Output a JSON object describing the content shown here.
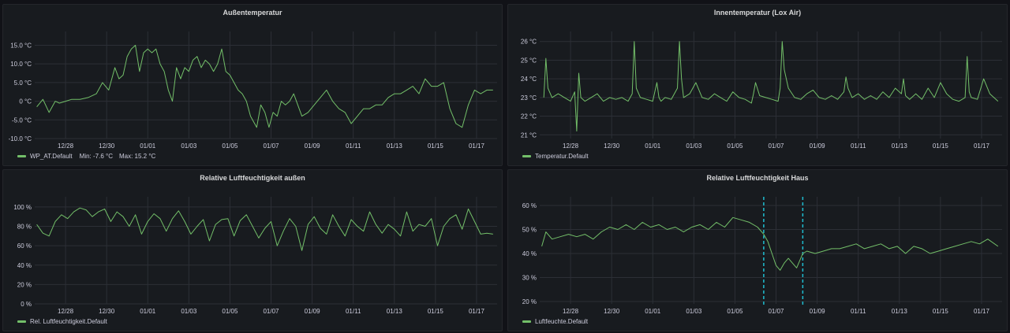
{
  "colors": {
    "line": "#73bf69",
    "grid": "#2c2f36",
    "annotation": "#1fbdd0"
  },
  "chart_data": [
    {
      "type": "line",
      "title": "Außentemperatur",
      "ylim": [
        -10,
        17
      ],
      "yticks": [
        15,
        10,
        5,
        0,
        -5,
        -10
      ],
      "ytick_labels": [
        "15.0 °C",
        "10.0 °C",
        "5.0 °C",
        "0 °C",
        "-5.0 °C",
        "-10.0 °C"
      ],
      "x_range_days": [
        0,
        22.5
      ],
      "xtick_labels": [
        "12/28",
        "12/30",
        "01/01",
        "01/03",
        "01/05",
        "01/07",
        "01/09",
        "01/11",
        "01/13",
        "01/15",
        "01/17"
      ],
      "xtick_days": [
        1.5,
        3.5,
        5.5,
        7.5,
        9.5,
        11.5,
        13.5,
        15.5,
        17.5,
        19.5,
        21.5
      ],
      "series": [
        {
          "name": "WP_AT.Default",
          "x": [
            0.1,
            0.4,
            0.7,
            1.0,
            1.2,
            1.5,
            1.8,
            2.2,
            2.6,
            3.0,
            3.3,
            3.6,
            3.9,
            4.1,
            4.3,
            4.5,
            4.7,
            4.9,
            5.1,
            5.3,
            5.5,
            5.7,
            5.9,
            6.1,
            6.3,
            6.5,
            6.7,
            6.9,
            7.1,
            7.3,
            7.5,
            7.7,
            7.9,
            8.1,
            8.3,
            8.5,
            8.7,
            8.9,
            9.1,
            9.3,
            9.5,
            9.7,
            9.9,
            10.1,
            10.3,
            10.5,
            10.8,
            11.0,
            11.2,
            11.4,
            11.6,
            11.8,
            12.0,
            12.2,
            12.4,
            12.6,
            12.8,
            13.0,
            13.3,
            13.6,
            13.9,
            14.2,
            14.5,
            14.8,
            15.1,
            15.4,
            15.7,
            16.0,
            16.3,
            16.6,
            16.9,
            17.2,
            17.5,
            17.8,
            18.1,
            18.4,
            18.7,
            19.0,
            19.3,
            19.6,
            19.9,
            20.2,
            20.5,
            20.8,
            21.1,
            21.4,
            21.7,
            22.0,
            22.3
          ],
          "y": [
            -1.5,
            0.5,
            -3,
            0,
            -0.5,
            0,
            0.5,
            0.5,
            1,
            2,
            5,
            3,
            9,
            6,
            7,
            12,
            14,
            15,
            8,
            13,
            14,
            13,
            14,
            10,
            8,
            3,
            0,
            9,
            6,
            9,
            8,
            11,
            12,
            9,
            11,
            10,
            8,
            10,
            14,
            8,
            7,
            5,
            3,
            2,
            0,
            -4,
            -7,
            -1,
            -3,
            -7,
            -3,
            -4,
            0,
            -1,
            0,
            2,
            -1,
            -4,
            -3,
            -1,
            1,
            3,
            0,
            -2,
            -3,
            -6,
            -4,
            -2,
            -2,
            -1,
            -1,
            1,
            2,
            2,
            3,
            4,
            2,
            6,
            4,
            4,
            5,
            -2,
            -6,
            -7,
            -1,
            3,
            2,
            3,
            3
          ]
        }
      ],
      "stats": {
        "min": "Min: -7.6 °C",
        "max": "Max: 15.2 °C"
      }
    },
    {
      "type": "line",
      "title": "Innentemperatur (Lox Air)",
      "ylim": [
        20.8,
        26.2
      ],
      "yticks": [
        26,
        25,
        24,
        23,
        22,
        21
      ],
      "ytick_labels": [
        "26 °C",
        "25 °C",
        "24 °C",
        "23 °C",
        "22 °C",
        "21 °C"
      ],
      "x_range_days": [
        0,
        22.5
      ],
      "xtick_labels": [
        "12/28",
        "12/30",
        "01/01",
        "01/03",
        "01/05",
        "01/07",
        "01/09",
        "01/11",
        "01/13",
        "01/15",
        "01/17"
      ],
      "xtick_days": [
        1.5,
        3.5,
        5.5,
        7.5,
        9.5,
        11.5,
        13.5,
        15.5,
        17.5,
        19.5,
        21.5
      ],
      "series": [
        {
          "name": "Temperatur.Default",
          "x": [
            0.2,
            0.3,
            0.4,
            0.6,
            0.9,
            1.2,
            1.5,
            1.7,
            1.8,
            1.9,
            2.0,
            2.2,
            2.5,
            2.8,
            3.1,
            3.4,
            3.7,
            4.0,
            4.3,
            4.5,
            4.6,
            4.7,
            4.9,
            5.2,
            5.5,
            5.7,
            5.8,
            5.9,
            6.1,
            6.4,
            6.7,
            6.8,
            6.9,
            7.0,
            7.3,
            7.6,
            7.9,
            8.2,
            8.5,
            8.8,
            9.1,
            9.4,
            9.7,
            10.0,
            10.3,
            10.4,
            10.5,
            10.7,
            11.0,
            11.3,
            11.6,
            11.7,
            11.8,
            11.9,
            12.1,
            12.4,
            12.7,
            13.0,
            13.3,
            13.6,
            13.9,
            14.2,
            14.5,
            14.8,
            14.9,
            15.0,
            15.2,
            15.5,
            15.8,
            16.1,
            16.4,
            16.7,
            17.0,
            17.3,
            17.6,
            17.7,
            17.8,
            18.0,
            18.3,
            18.6,
            18.9,
            19.2,
            19.5,
            19.8,
            20.1,
            20.4,
            20.7,
            20.8,
            20.9,
            21.0,
            21.3,
            21.6,
            21.9,
            22.3
          ],
          "y": [
            23,
            25.1,
            23.5,
            23,
            23.2,
            23,
            22.8,
            23.3,
            21.2,
            24.3,
            23,
            22.8,
            23,
            23.2,
            22.8,
            23,
            22.9,
            23,
            22.8,
            23.2,
            26,
            23.5,
            23,
            22.9,
            22.8,
            23.8,
            23,
            22.8,
            23,
            22.9,
            23.5,
            26,
            24,
            23,
            23.2,
            23.8,
            23,
            22.9,
            23.2,
            23,
            22.8,
            23.3,
            23,
            22.9,
            22.7,
            23.2,
            23.8,
            23.1,
            23,
            22.9,
            22.8,
            23.5,
            26,
            24.5,
            23.5,
            23,
            22.9,
            23.2,
            23.4,
            23,
            22.9,
            23.1,
            22.9,
            23.3,
            24.1,
            23.5,
            23,
            23.2,
            22.9,
            23.1,
            22.9,
            23.3,
            23,
            23.5,
            23.2,
            24.0,
            23.1,
            22.9,
            23.2,
            22.9,
            23.5,
            23,
            23.8,
            23.2,
            22.9,
            22.8,
            23,
            25.2,
            23.3,
            23,
            22.9,
            24,
            23.2,
            22.8
          ]
        }
      ]
    },
    {
      "type": "line",
      "title": "Relative Luftfeuchtigkeit außen",
      "ylim": [
        0,
        104
      ],
      "yticks": [
        100,
        80,
        60,
        40,
        20,
        0
      ],
      "ytick_labels": [
        "100 %",
        "80 %",
        "60 %",
        "40 %",
        "20 %",
        "0 %"
      ],
      "x_range_days": [
        0,
        22.5
      ],
      "xtick_labels": [
        "12/28",
        "12/30",
        "01/01",
        "01/03",
        "01/05",
        "01/07",
        "01/09",
        "01/11",
        "01/13",
        "01/15",
        "01/17"
      ],
      "xtick_days": [
        1.5,
        3.5,
        5.5,
        7.5,
        9.5,
        11.5,
        13.5,
        15.5,
        17.5,
        19.5,
        21.5
      ],
      "series": [
        {
          "name": "Rel. Luftfeuchtigkeit.Default",
          "x": [
            0.1,
            0.4,
            0.7,
            1.0,
            1.3,
            1.6,
            1.9,
            2.2,
            2.5,
            2.8,
            3.1,
            3.4,
            3.7,
            4.0,
            4.3,
            4.6,
            4.9,
            5.2,
            5.5,
            5.8,
            6.1,
            6.4,
            6.7,
            7.0,
            7.3,
            7.6,
            7.9,
            8.2,
            8.5,
            8.8,
            9.1,
            9.4,
            9.7,
            10.0,
            10.3,
            10.6,
            10.9,
            11.2,
            11.5,
            11.8,
            12.1,
            12.4,
            12.7,
            13.0,
            13.3,
            13.6,
            13.9,
            14.2,
            14.5,
            14.8,
            15.1,
            15.4,
            15.7,
            16.0,
            16.3,
            16.6,
            16.9,
            17.2,
            17.5,
            17.8,
            18.1,
            18.4,
            18.7,
            19.0,
            19.3,
            19.6,
            19.9,
            20.2,
            20.5,
            20.8,
            21.1,
            21.4,
            21.7,
            22.0,
            22.3
          ],
          "y": [
            82,
            73,
            70,
            85,
            92,
            88,
            95,
            99,
            97,
            90,
            95,
            98,
            85,
            95,
            90,
            80,
            92,
            72,
            85,
            93,
            88,
            75,
            88,
            96,
            85,
            72,
            80,
            87,
            65,
            82,
            87,
            88,
            70,
            86,
            92,
            80,
            68,
            78,
            85,
            60,
            75,
            88,
            80,
            55,
            82,
            90,
            78,
            72,
            92,
            80,
            70,
            87,
            80,
            75,
            95,
            82,
            73,
            82,
            77,
            70,
            95,
            75,
            82,
            80,
            88,
            60,
            80,
            88,
            92,
            77,
            98,
            85,
            72,
            73,
            72
          ]
        }
      ]
    },
    {
      "type": "line",
      "title": "Relative Luftfeuchtigkeit Haus",
      "ylim": [
        19,
        61
      ],
      "yticks": [
        60,
        50,
        40,
        30,
        20
      ],
      "ytick_labels": [
        "60 %",
        "50 %",
        "40 %",
        "30 %",
        "20 %"
      ],
      "x_range_days": [
        0,
        22.5
      ],
      "xtick_labels": [
        "12/28",
        "12/30",
        "01/01",
        "01/03",
        "01/05",
        "01/07",
        "01/09",
        "01/11",
        "01/13",
        "01/15",
        "01/17"
      ],
      "xtick_days": [
        1.5,
        3.5,
        5.5,
        7.5,
        9.5,
        11.5,
        13.5,
        15.5,
        17.5,
        19.5,
        21.5
      ],
      "annotations_days": [
        10.9,
        12.8
      ],
      "series": [
        {
          "name": "Luftfeuchte.Default",
          "x": [
            0.1,
            0.3,
            0.6,
            1.0,
            1.4,
            1.8,
            2.2,
            2.6,
            3.0,
            3.4,
            3.8,
            4.2,
            4.6,
            5.0,
            5.4,
            5.8,
            6.2,
            6.6,
            7.0,
            7.4,
            7.8,
            8.2,
            8.6,
            9.0,
            9.4,
            9.8,
            10.2,
            10.6,
            10.9,
            11.1,
            11.3,
            11.5,
            11.7,
            11.9,
            12.1,
            12.3,
            12.5,
            12.7,
            12.8,
            13.0,
            13.4,
            13.8,
            14.2,
            14.6,
            15.0,
            15.4,
            15.8,
            16.2,
            16.6,
            17.0,
            17.4,
            17.8,
            18.2,
            18.6,
            19.0,
            19.4,
            19.8,
            20.2,
            20.6,
            21.0,
            21.4,
            21.8,
            22.3
          ],
          "y": [
            43,
            49,
            46,
            47,
            48,
            47,
            48,
            46,
            49,
            51,
            50,
            52,
            50,
            53,
            51,
            52,
            50,
            51,
            49,
            51,
            52,
            50,
            53,
            51,
            55,
            54,
            53,
            51,
            48,
            45,
            40,
            35,
            33,
            36,
            38,
            36,
            34,
            38,
            40,
            41,
            40,
            41,
            42,
            42,
            43,
            44,
            42,
            43,
            44,
            42,
            43,
            40,
            43,
            42,
            40,
            41,
            42,
            43,
            44,
            45,
            44,
            46,
            43
          ]
        }
      ]
    }
  ]
}
